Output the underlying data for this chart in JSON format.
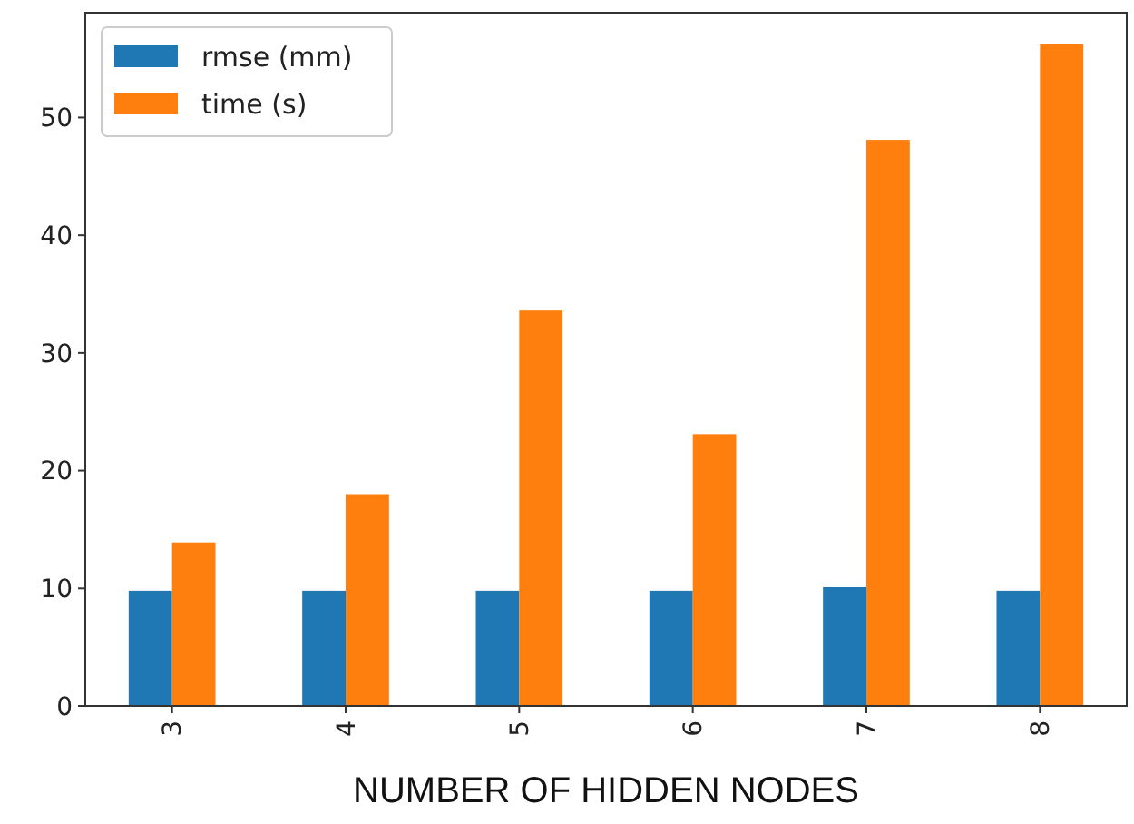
{
  "chart_data": {
    "type": "bar",
    "xlabel": "NUMBER OF HIDDEN NODES",
    "categories": [
      "3",
      "4",
      "5",
      "6",
      "7",
      "8"
    ],
    "series": [
      {
        "name": "rmse (mm)",
        "color": "#1f77b4",
        "values": [
          9.8,
          9.8,
          9.8,
          9.8,
          10.1,
          9.8
        ]
      },
      {
        "name": "time (s)",
        "color": "#ff7f0e",
        "values": [
          13.9,
          18.0,
          33.6,
          23.1,
          48.1,
          56.2
        ]
      }
    ],
    "ylim": [
      0,
      58.9
    ],
    "yticks": [
      0,
      10,
      20,
      30,
      40,
      50
    ],
    "legend": "top left",
    "grid": false
  }
}
